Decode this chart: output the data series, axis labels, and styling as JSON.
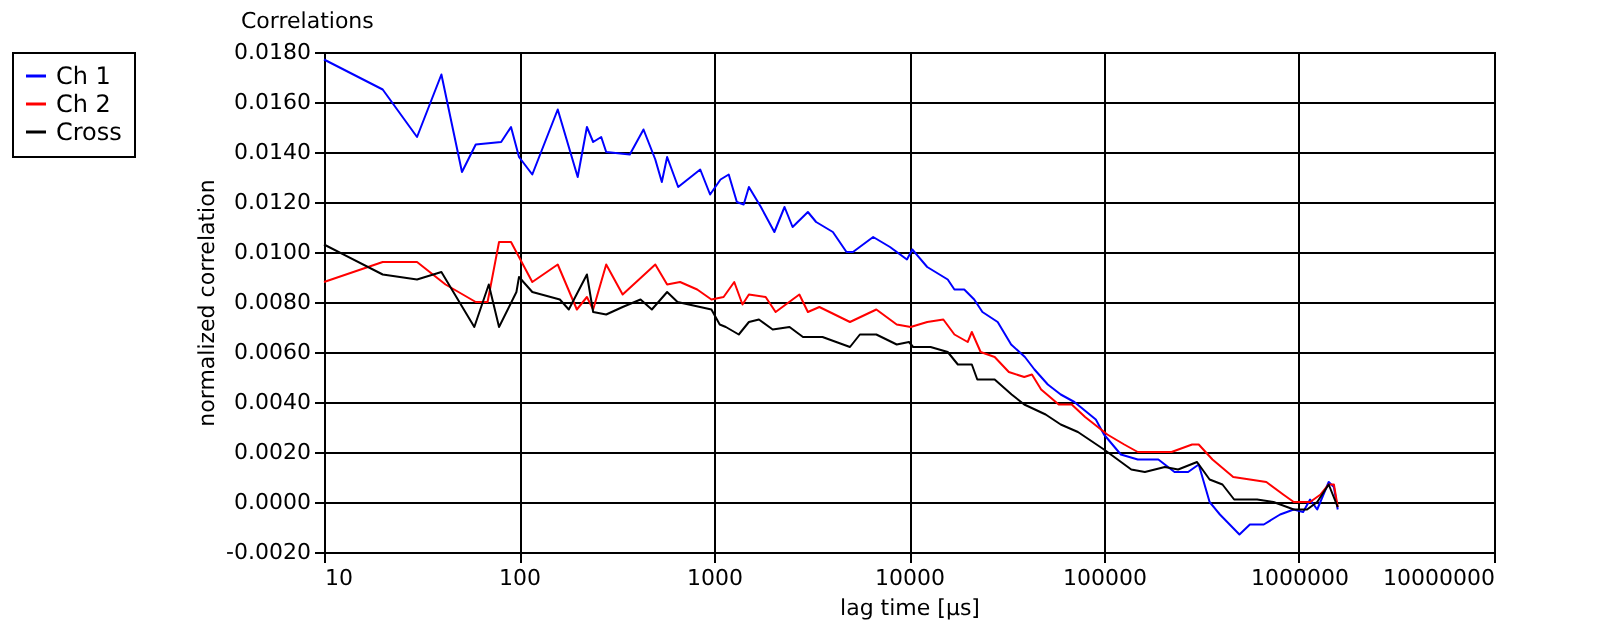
{
  "chart_data": {
    "type": "line",
    "title": "Correlations",
    "xlabel": "lag time [µs]",
    "ylabel": "normalized correlation",
    "log": "x",
    "grid": true,
    "legend": "top left",
    "line_style": "solid",
    "xlim": [
      10,
      10000000
    ],
    "xticks": [
      10,
      100,
      1000,
      10000,
      100000,
      1000000,
      10000000
    ],
    "ylim": [
      -0.002,
      0.018
    ],
    "yticks": [
      {
        "value": -0.002,
        "label": "-0.0020"
      },
      {
        "value": 0.0,
        "label": "0.0000"
      },
      {
        "value": 0.002,
        "label": "0.0020"
      },
      {
        "value": 0.004,
        "label": "0.0040"
      },
      {
        "value": 0.006,
        "label": "0.0060"
      },
      {
        "value": 0.008,
        "label": "0.0080"
      },
      {
        "value": 0.01,
        "label": "0.0100"
      },
      {
        "value": 0.012,
        "label": "0.0120"
      },
      {
        "value": 0.014,
        "label": "0.0140"
      },
      {
        "value": 0.016,
        "label": "0.0160"
      },
      {
        "value": 0.018,
        "label": "0.0180"
      }
    ],
    "series": [
      {
        "name": "Ch 1",
        "color": "#0000ff",
        "x": [
          10,
          20,
          30,
          40,
          51,
          60,
          81,
          91,
          100,
          117,
          158,
          200,
          223,
          240,
          264,
          280,
          370,
          435,
          500,
          540,
          575,
          655,
          850,
          955,
          1080,
          1190,
          1310,
          1420,
          1510,
          1740,
          2040,
          2300,
          2530,
          3030,
          3340,
          4070,
          4780,
          5160,
          6550,
          7990,
          9760,
          10400,
          12400,
          15800,
          17100,
          19200,
          21600,
          23800,
          28500,
          33400,
          39300,
          44000,
          51500,
          60000,
          70500,
          90800,
          100000,
          122000,
          149000,
          190000,
          230000,
          270000,
          306000,
          348000,
          393000,
          495000,
          560000,
          660000,
          800000,
          940000,
          1050000,
          1140000,
          1240000,
          1420000,
          1510000,
          1580000
        ],
        "values": [
          0.0177,
          0.0165,
          0.0146,
          0.0171,
          0.0132,
          0.0143,
          0.0144,
          0.015,
          0.0138,
          0.0131,
          0.0157,
          0.013,
          0.015,
          0.0144,
          0.0146,
          0.014,
          0.0139,
          0.0149,
          0.0137,
          0.0128,
          0.0138,
          0.0126,
          0.0133,
          0.0123,
          0.0129,
          0.0131,
          0.012,
          0.0119,
          0.0126,
          0.0118,
          0.0108,
          0.0118,
          0.011,
          0.0116,
          0.0112,
          0.0108,
          0.01,
          0.01,
          0.0106,
          0.0102,
          0.0097,
          0.0101,
          0.0094,
          0.0089,
          0.0085,
          0.0085,
          0.0081,
          0.0076,
          0.0072,
          0.0063,
          0.0058,
          0.0053,
          0.0047,
          0.0043,
          0.004,
          0.0033,
          0.0027,
          0.0019,
          0.0017,
          0.0017,
          0.0012,
          0.0012,
          0.0015,
          0.0,
          -0.0005,
          -0.0013,
          -0.0009,
          -0.0009,
          -0.0005,
          -0.0003,
          -0.0004,
          0.0001,
          -0.0003,
          0.0008,
          0.0006,
          -0.0003
        ]
      },
      {
        "name": "Ch 2",
        "color": "#ff0000",
        "x": [
          10,
          20,
          30,
          42,
          60,
          69,
          79,
          91,
          117,
          158,
          198,
          223,
          240,
          280,
          340,
          500,
          575,
          670,
          820,
          970,
          1120,
          1270,
          1400,
          1510,
          1840,
          2070,
          2740,
          3030,
          3470,
          4980,
          6800,
          8650,
          10200,
          12400,
          15000,
          17100,
          20000,
          21000,
          23300,
          27500,
          32500,
          39000,
          42700,
          47600,
          58600,
          68300,
          80000,
          93000,
          104000,
          127000,
          149000,
          222000,
          283000,
          306000,
          360000,
          460000,
          560000,
          680000,
          830000,
          940000,
          1140000,
          1290000,
          1420000,
          1510000,
          1580000
        ],
        "values": [
          0.0088,
          0.0096,
          0.0096,
          0.0087,
          0.008,
          0.008,
          0.0104,
          0.0104,
          0.0088,
          0.0095,
          0.0077,
          0.0082,
          0.0077,
          0.0095,
          0.0083,
          0.0095,
          0.0087,
          0.0088,
          0.0085,
          0.0081,
          0.0082,
          0.0088,
          0.0079,
          0.0083,
          0.0082,
          0.0076,
          0.0083,
          0.0076,
          0.0078,
          0.0072,
          0.0077,
          0.0071,
          0.007,
          0.0072,
          0.0073,
          0.0067,
          0.0064,
          0.0068,
          0.006,
          0.0058,
          0.0052,
          0.005,
          0.0051,
          0.0045,
          0.0039,
          0.0039,
          0.0034,
          0.003,
          0.0027,
          0.0023,
          0.002,
          0.002,
          0.0023,
          0.0023,
          0.0017,
          0.001,
          0.0009,
          0.0008,
          0.0003,
          0.0,
          0.0,
          0.0003,
          0.0007,
          0.0007,
          -0.0002
        ]
      },
      {
        "name": "Cross",
        "color": "#000000",
        "x": [
          10,
          20,
          30,
          40,
          59,
          70,
          79,
          97,
          100,
          117,
          162,
          180,
          223,
          240,
          280,
          340,
          420,
          480,
          575,
          650,
          970,
          1070,
          1150,
          1340,
          1510,
          1700,
          2000,
          2440,
          2860,
          3600,
          4980,
          5600,
          6800,
          8650,
          10000,
          10500,
          12900,
          15800,
          17800,
          21000,
          22400,
          27500,
          33600,
          39000,
          50200,
          60000,
          73500,
          100000,
          138000,
          162000,
          205000,
          240000,
          300000,
          348000,
          405000,
          465000,
          610000,
          740000,
          940000,
          1100000,
          1240000,
          1420000,
          1580000
        ],
        "values": [
          0.0103,
          0.0091,
          0.0089,
          0.0092,
          0.007,
          0.0087,
          0.007,
          0.0084,
          0.009,
          0.0084,
          0.0081,
          0.0077,
          0.0091,
          0.0076,
          0.0075,
          0.0078,
          0.0081,
          0.0077,
          0.0084,
          0.008,
          0.0077,
          0.0071,
          0.007,
          0.0067,
          0.0072,
          0.0073,
          0.0069,
          0.007,
          0.0066,
          0.0066,
          0.0062,
          0.0067,
          0.0067,
          0.0063,
          0.0064,
          0.0062,
          0.0062,
          0.006,
          0.0055,
          0.0055,
          0.0049,
          0.0049,
          0.0043,
          0.0039,
          0.0035,
          0.0031,
          0.0028,
          0.0021,
          0.0013,
          0.0012,
          0.0014,
          0.0013,
          0.0016,
          0.0009,
          0.0007,
          0.0001,
          0.0001,
          0.0,
          -0.0003,
          -0.0003,
          0.0,
          0.0007,
          -0.0002
        ]
      }
    ]
  }
}
